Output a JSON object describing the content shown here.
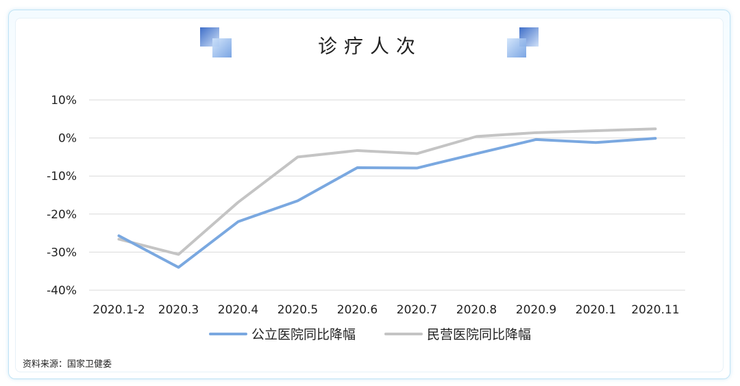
{
  "chart_data": {
    "type": "line",
    "title": "诊疗人次",
    "categories": [
      "2020.1-2",
      "2020.3",
      "2020.4",
      "2020.5",
      "2020.6",
      "2020.7",
      "2020.8",
      "2020.9",
      "2020.1",
      "2020.11"
    ],
    "ylim": [
      -40,
      10
    ],
    "yticks": [
      10,
      0,
      -10,
      -20,
      -30,
      -40
    ],
    "ytick_labels": [
      "10%",
      "0%",
      "-10%",
      "-20%",
      "-30%",
      "-40%"
    ],
    "grid": true,
    "legend_position": "bottom",
    "series": [
      {
        "name": "公立医院同比降幅",
        "color": "#7aa8e0",
        "values": [
          -25.7,
          -34.0,
          -22.0,
          -16.5,
          -7.8,
          -7.9,
          -4.1,
          -0.4,
          -1.2,
          -0.1
        ]
      },
      {
        "name": "民营医院同比降幅",
        "color": "#c4c4c4",
        "values": [
          -26.6,
          -30.6,
          -16.9,
          -5.0,
          -3.3,
          -4.1,
          0.4,
          1.4,
          1.9,
          2.4
        ]
      }
    ]
  },
  "source": "资料来源：国家卫健委"
}
